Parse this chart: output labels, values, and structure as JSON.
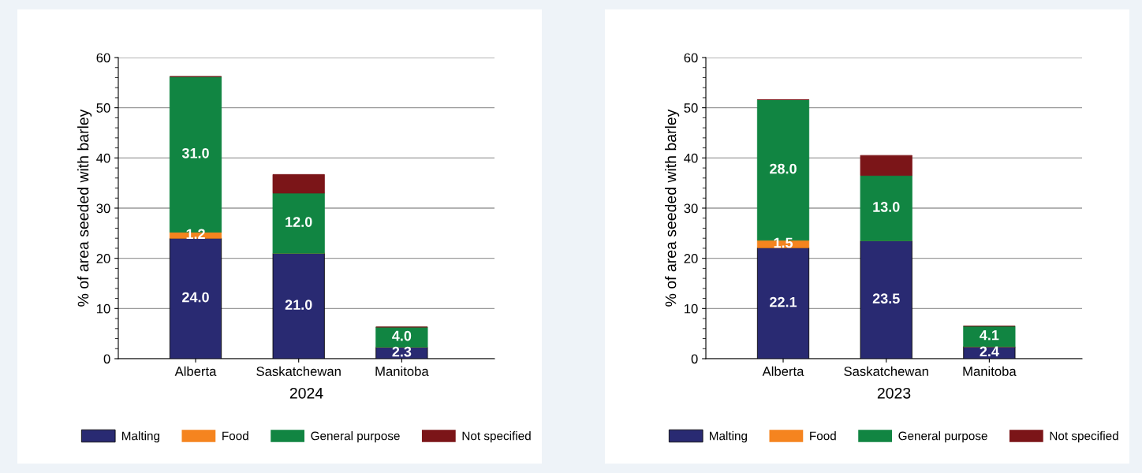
{
  "chart_data": [
    {
      "type": "bar",
      "stacked": true,
      "xlabel": "2024",
      "ylabel": "% of area seeded with barley",
      "categories": [
        "Alberta",
        "Saskatchewan",
        "Manitoba"
      ],
      "ylim": [
        0,
        60
      ],
      "yticks": [
        0,
        10,
        20,
        30,
        40,
        50,
        60
      ],
      "grid": "y",
      "legend": "bottom",
      "series": [
        {
          "name": "Malting",
          "color": "#292a72",
          "values": [
            24.0,
            21.0,
            2.3
          ],
          "value_labels": [
            "24.0",
            "21.0",
            "2.3"
          ]
        },
        {
          "name": "Food",
          "color": "#f5841f",
          "values": [
            1.2,
            0,
            0
          ],
          "value_labels": [
            "1.2",
            null,
            null
          ]
        },
        {
          "name": "General purpose",
          "color": "#118542",
          "values": [
            31.0,
            12.0,
            4.0
          ],
          "value_labels": [
            "31.0",
            "12.0",
            "4.0"
          ]
        },
        {
          "name": "Not specified",
          "color": "#7b1518",
          "values": [
            0,
            3.7,
            0
          ]
        }
      ]
    },
    {
      "type": "bar",
      "stacked": true,
      "xlabel": "2023",
      "ylabel": "% of area seeded with barley",
      "categories": [
        "Alberta",
        "Saskatchewan",
        "Manitoba"
      ],
      "ylim": [
        0,
        60
      ],
      "yticks": [
        0,
        10,
        20,
        30,
        40,
        50,
        60
      ],
      "grid": "y",
      "legend": "bottom",
      "series": [
        {
          "name": "Malting",
          "color": "#292a72",
          "values": [
            22.1,
            23.5,
            2.4
          ],
          "value_labels": [
            "22.1",
            "23.5",
            "2.4"
          ]
        },
        {
          "name": "Food",
          "color": "#f5841f",
          "values": [
            1.5,
            0,
            0
          ],
          "value_labels": [
            "1.5",
            null,
            null
          ]
        },
        {
          "name": "General purpose",
          "color": "#118542",
          "values": [
            28.0,
            13.0,
            4.1
          ],
          "value_labels": [
            "28.0",
            "13.0",
            "4.1"
          ]
        },
        {
          "name": "Not specified",
          "color": "#7b1518",
          "values": [
            0,
            4.0,
            0
          ]
        }
      ]
    }
  ]
}
